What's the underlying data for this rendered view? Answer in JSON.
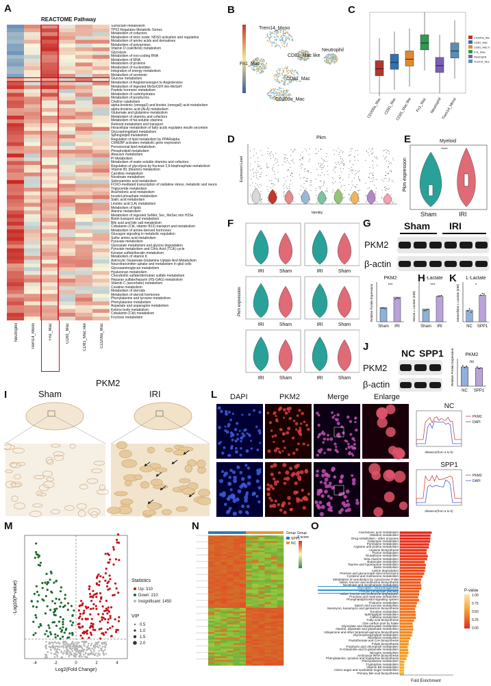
{
  "panels": {
    "a": "A",
    "b": "B",
    "c": "C",
    "d": "D",
    "e": "E",
    "f": "F",
    "g": "G",
    "h": "H",
    "i": "I",
    "j": "J",
    "k": "K",
    "l": "L",
    "m": "M",
    "n": "N",
    "o": "O"
  },
  "panel_a": {
    "title": "REACTOME Pathway",
    "columns": [
      "Neutrophil",
      "Trem14_Mono",
      "Fn1_Mac",
      "CD81_Mac",
      "CD81_Mac like",
      "CD209a_Mac"
    ],
    "pathways": [
      "Surfactant metabolism",
      "TP53 Regulates Metabolic Genes",
      "Metabolism of cofactors",
      "Metabolism of nitric oxide: NOS3 activation and regulation",
      "Metabolism of amino acids and derivatives",
      "Metabolism of polyamines",
      "Vitamin D (calciferol) metabolism",
      "Glycolysis",
      "Metabolism of non-coding RNA",
      "Metabolism of RNA",
      "Metabolism of proteins",
      "Metabolism of nucleotides",
      "Integration of energy metabolism",
      "Metabolism of serotonin",
      "Glucose metabolism",
      "Metabolism of Angiotensinogen to Angiotensins",
      "Metabolism of ingested MeSeO2H into MeSeH",
      "Peptide hormone metabolism",
      "Metabolism of carbohydrates",
      "Metabolism of porphyrins",
      "Choline catabolism",
      "alpha-linolenic (omega3) and linoleic (omega6) acid metabolism",
      "alpha-linolenic acid (ALA) metabolism",
      "Glutamate and glutamine metabolism",
      "Metabolism of vitamins and cofactors",
      "Metabolism of fat-soluble vitamins",
      "Retinoid metabolism and transport",
      "Intracellular metabolism of fatty acids regulates insulin secretion",
      "Glycosphingolipid metabolism",
      "Sphingolipid metabolism",
      "Regulation of lipid metabolism by PPARalpha",
      "ChREBP activates metabolic gene expression",
      "Peroxisomal lipid metabolism",
      "Phospholipid metabolism",
      "Abacavir metabolism",
      "PI Metabolism",
      "Metabolism of water-soluble vitamins and cofactors",
      "Regulation of glycolysis by fructose 2,6-bisphosphate metabolism",
      "Vitamin B1 (thiamin) metabolism",
      "Carnitine metabolism",
      "Nicotinate metabolism",
      "Selenoamino acid metabolism",
      "FOXO-mediated transcription of oxidative stress, metabolic and neuronal genes",
      "Triglyceride metabolism",
      "Arachidonic acid metabolism",
      "Inositol phosphate metabolism",
      "Sialic acid metabolism",
      "Linoleic acid (LA) metabolism",
      "Metabolism of lipids",
      "Alanine metabolism",
      "Metabolism of ingested SeMet, Sec, MeSec into H2Se",
      "Biotin transport and metabolism",
      "Bile acid and bile salt metabolism",
      "Cobalamin (Cbl, vitamin B12) transport and metabolism",
      "Metabolism of amine-derived hormones",
      "Glucagon signaling in metabolic regulation",
      "Sulfur amino acid metabolism",
      "Pyruvate metabolism",
      "Glyoxylate metabolism and glycine degradation",
      "Pyruvate metabolism and Citric Acid (TCA) cycle",
      "Keratan sulfate/keratin metabolism",
      "Metabolism of vitamin K",
      "Astrocytic Glutamate-Glutamine Uptake And Metabolism",
      "Neurotransmitter uptake and metabolism In glial cells",
      "Glycosaminoglycan metabolism",
      "Hyaluronan metabolism",
      "Chondroitin sulfate/dermatan sulfate metabolism",
      "Heparan sulfate/heparin (HS-GAG) metabolism",
      "Vitamin C (ascorbate) metabolism",
      "Creatine metabolism",
      "Metabolism of steroids",
      "Metabolism of steroid hormones",
      "Phenylalanine and tyrosine metabolism",
      "Phenylalanine metabolism",
      "Aspartate and asparagine metabolism",
      "Ketone body metabolism",
      "Cobalamin (Cbl) metabolism",
      "Fructose metabolism"
    ]
  },
  "panel_b": {
    "clusters": [
      "Trem14_Mono",
      "Neutrophil",
      "CD81_Mac like",
      "Fn1_Mac",
      "CD81_Mac",
      "CD209a_Mac"
    ]
  },
  "panel_c": {
    "categories": [
      "CD209a_Mac",
      "CD81_Mac",
      "CD81_Mac like",
      "Fn1_Mac",
      "Neutrophil",
      "Trem14_Mono"
    ]
  },
  "panel_d": {
    "title": "Pkm",
    "ylabel": "Expression Level",
    "xlabel": "Identity"
  },
  "panel_e": {
    "title": "Myeloid",
    "ylabel": "Pkm expression",
    "groups": [
      "Sham",
      "IRI"
    ],
    "sig": "****"
  },
  "panel_f": {
    "ylabel": "Pkm expression",
    "groups": [
      "IRI",
      "Sham"
    ]
  },
  "panel_g": {
    "labels": [
      "Sham",
      "IRI"
    ],
    "rows": [
      "PKM2",
      "β-actin"
    ]
  },
  "panel_h": {
    "chart_data": [
      {
        "type": "bar",
        "title": "PKM2",
        "ylabel": "Relative Protein Expression",
        "categories": [
          "Sham",
          "IRI"
        ],
        "values": [
          0.9,
          1.55
        ],
        "ylim": [
          0,
          2.5
        ],
        "sig": "***"
      },
      {
        "type": "bar",
        "title": "L-Lactate",
        "ylabel": "Serum L-Lactate (mM)",
        "categories": [
          "Sham",
          "IRI"
        ],
        "values": [
          0.8,
          1.6
        ],
        "ylim": [
          0,
          2.5
        ],
        "sig": "***"
      },
      {
        "type": "bar",
        "title": "L-Lactate",
        "ylabel": "Intracellular L-Lactate (mM)",
        "categories": [
          "NC",
          "SPP1"
        ],
        "values": [
          3.5,
          8.0
        ],
        "ylim": [
          0,
          12
        ],
        "sig": "*"
      },
      {
        "type": "bar",
        "title": "PKM2",
        "ylabel": "Relative Protein Expression",
        "categories": [
          "NC",
          "SPP1"
        ],
        "values": [
          1.05,
          1.0
        ],
        "ylim": [
          0,
          1.5
        ],
        "sig": "ns"
      }
    ]
  },
  "panel_j": {
    "labels": [
      "NC",
      "SPP1"
    ],
    "rows": [
      "PKM2",
      "β-actin"
    ]
  },
  "panel_i": {
    "title": "PKM2",
    "groups": [
      "Sham",
      "IRI"
    ]
  },
  "panel_l": {
    "columns": [
      "DAPI",
      "PKM2",
      "Merge",
      "Enlarge"
    ],
    "profiles": [
      {
        "title": "NC",
        "xlabel": "distance(from a to b)",
        "legend": [
          "PKM2",
          "DAPI"
        ]
      },
      {
        "title": "SPP1",
        "xlabel": "distance(from a to b)",
        "legend": [
          "PKM2",
          "DAPI"
        ]
      }
    ]
  },
  "panel_m": {
    "ylabel": "-Log10(P-value)",
    "xlabel": "Log2(Fold Change)",
    "statistics_title": "Statistics",
    "stats": [
      "Up: 310",
      "Down: 210",
      "Insignificant: 1450"
    ],
    "vip_title": "VIP",
    "vip_values": [
      "0.5",
      "1.0",
      "1.5",
      "2.0"
    ],
    "colors": {
      "up": "#c4121a",
      "down": "#1c6a2c",
      "insig": "#b5b5b5"
    }
  },
  "panel_n": {
    "legend_group": "Group",
    "legend_items": [
      "SPP1",
      "NC"
    ],
    "legend_scale_title": "Group",
    "legend_z": "Z-score"
  },
  "panel_o": {
    "pathways": [
      "Arachidonic acid metabolism",
      "Histidine metabolism",
      "Drug metabolism - other enzymes",
      "Galactose metabolism",
      "Pyrimidine metabolism",
      "Arginine and proline metabolism",
      "Arginine biosynthesis",
      "Purine metabolism",
      "Glutathione metabolism",
      "beta-Alanine metabolism",
      "Butanoate metabolism",
      "Taurine and hypotaurine metabolism",
      "Biotin metabolism",
      "Lysine degradation",
      "Pentose and glucuronate interconversions",
      "Cysteine and methionine metabolism",
      "Metabolism of xenobiotics by cytochrome P450",
      "Valine, leucine and isoleucine biosynthesis",
      "Nicotinate and nicotinamide metabolism",
      "Glycolysis / Gluconeogenesis",
      "Pentose phosphate pathway",
      "Valine, leucine and isoleucine degradation",
      "Fructose and mannose metabolism",
      "Phosphatidylinositol signaling system",
      "Thiamine metabolism",
      "Starch and sucrose metabolism",
      "Neomycin, kanamycin and gentamicin biosynthesis",
      "Tyrosine metabolism",
      "Sphingolipid metabolism",
      "Caffeine metabolism",
      "Fatty acid biosynthesis",
      "One carbon pool by folate",
      "Glyoxylate and dicarboxylate metabolism",
      "Alanine, aspartate and glutamate metabolism",
      "Ubiquinone and other terpenoid-quinone biosynthesis",
      "Glycerophospholipid metabolism",
      "Riboflavin metabolism",
      "Pantothenate and CoA biosynthesis",
      "Folate biosynthesis",
      "Porphyrin and chlorophyll metabolism",
      "D-Glutamine and D-glutamate metabolism",
      "Nitrogen metabolism",
      "Aminoacyl-tRNA biosynthesis",
      "Phenylalanine, tyrosine and tryptophan biosynthesis",
      "Phenylalanine metabolism",
      "Tryptophan metabolism",
      "Vitamin B6 metabolism",
      "Amino sugar and nucleotide sugar metabolism",
      "Primary bile acid biosynthesis"
    ],
    "xlabel": "Fold Enrichment",
    "legend_title": "P-value",
    "legend_ticks": [
      "1.00",
      "0.75",
      "0.50",
      "0.25",
      "0.00"
    ]
  }
}
